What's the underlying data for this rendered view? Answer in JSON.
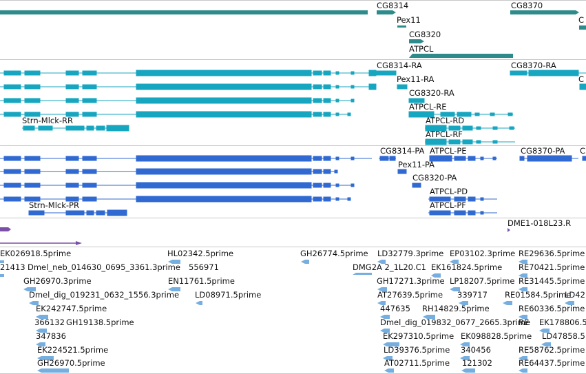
{
  "colors": {
    "gene": "#2e8b8b",
    "mrna_a": "#17a6c0",
    "mrna_b": "#2f69d1",
    "misc": "#7b4fa8",
    "est": "#76aee0",
    "separator": "#c8c8c8"
  },
  "tracks": {
    "genes": {
      "labels": [
        "CG8314",
        "Pex11",
        "CG8320",
        "ATPCL",
        "CG8370",
        "C"
      ]
    },
    "mrna_a": {
      "labels": [
        "CG8314-RA",
        "Pex11-RA",
        "CG8320-RA",
        "ATPCL-RE",
        "ATPCL-RD",
        "ATPCL-RF",
        "CG8370-RA",
        "C",
        "Strn-Mlck-RR"
      ]
    },
    "mrna_b": {
      "labels": [
        "CG8314-PA",
        "ATPCL-PE",
        "CG8370-PA",
        "C",
        "Pex11-PA",
        "CG8320-PA",
        "ATPCL-PD",
        "ATPCL-PF",
        "Strn-Mlck-PR"
      ]
    },
    "misc": {
      "labels": [
        "DME1-018L23.R"
      ]
    },
    "ests": {
      "labels": [
        "EK026918.5prime",
        "HL02342.5prime",
        "GH26774.5prime",
        "LD32779.3prime",
        "EP03102.3prime",
        "RE29636.5prime",
        "21413",
        "Dmel_neb_014630_0695_3361.3prime",
        "556971",
        "DMG2A 2_1L20.C1",
        "EK161824.5prime",
        "RE70421.5prime",
        "GH26970.3prime",
        "EN11761.5prime",
        "GH17271.3prime",
        "LP18207.5prime",
        "RE31445.5prime",
        "Dmel_dig_019231_0632_1556.3prime",
        "LD08971.5prime",
        "AT27639.5prime",
        "339717",
        "RE01584.5prime",
        "LD42",
        "EK242747.5prime",
        "447635",
        "RH14829.5prime",
        "RE60336.5prime",
        "366132",
        "GH19138.5prime",
        "Dmel_dig_019832_0677_2665.3prime",
        "RE",
        "EK178806.5",
        "347836",
        "EK297310.5prime",
        "EK098828.5prime",
        "LD47858.5",
        "EK224521.5prime",
        "LD39376.5prime",
        "340456",
        "RE58762.5prime",
        "GH26970.5prime",
        "AT02711.5prime",
        "121302",
        "RE64437.5prime"
      ]
    }
  }
}
